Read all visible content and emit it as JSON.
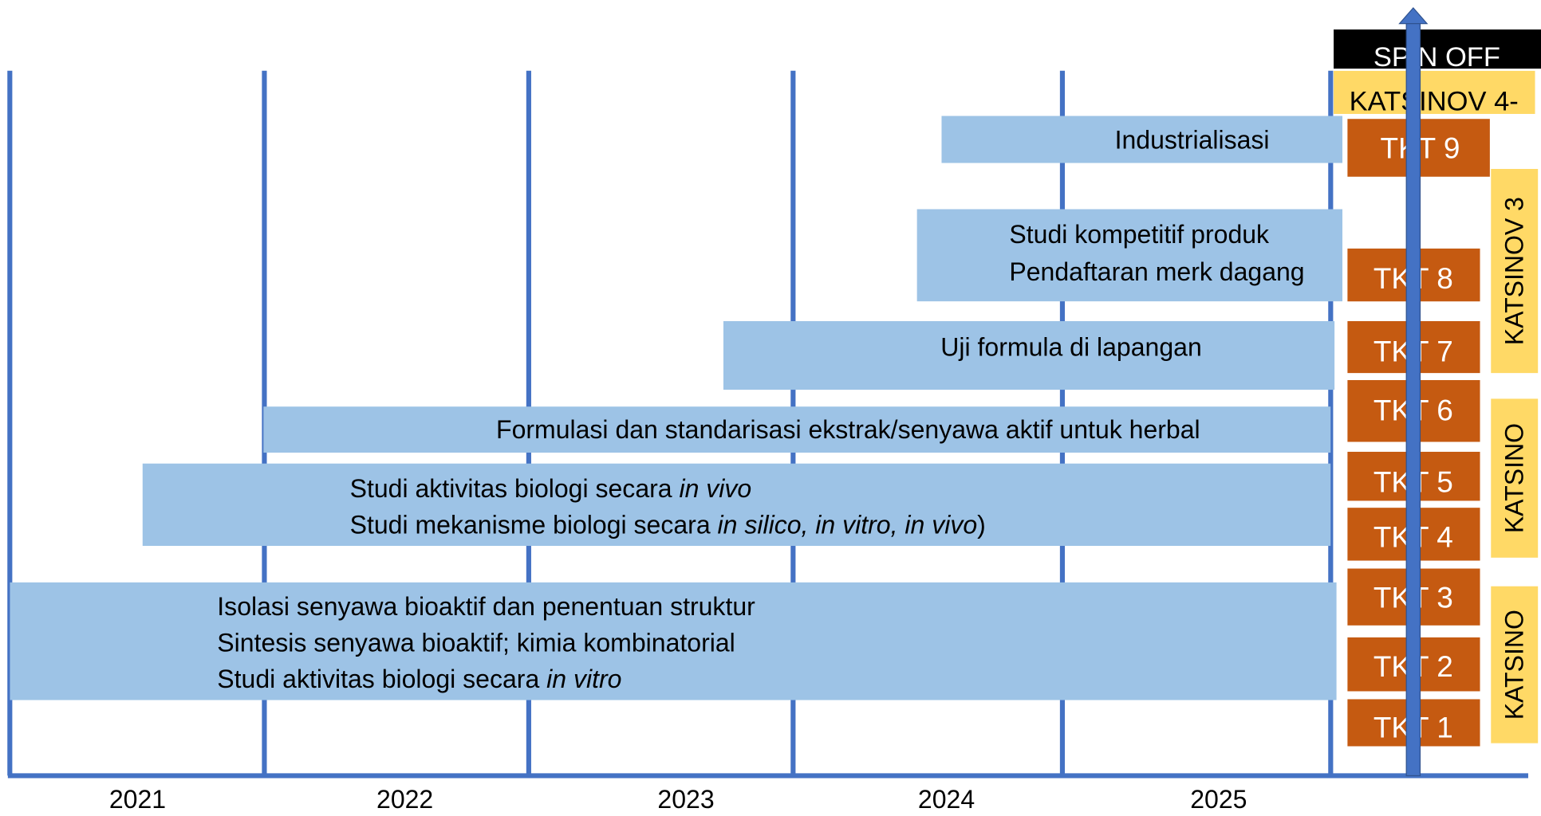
{
  "years": [
    "2021",
    "2022",
    "2023",
    "2024",
    "2025"
  ],
  "activities": [
    {
      "lines": [
        [
          {
            "text": "Industrialisasi",
            "italic": false
          }
        ]
      ]
    },
    {
      "lines": [
        [
          {
            "text": "Studi kompetitif produk",
            "italic": false
          }
        ],
        [
          {
            "text": "Pendaftaran merk dagang",
            "italic": false
          }
        ]
      ]
    },
    {
      "lines": [
        [
          {
            "text": "Uji formula di lapangan",
            "italic": false
          }
        ]
      ]
    },
    {
      "lines": [
        [
          {
            "text": "Formulasi dan standarisasi ekstrak/senyawa aktif untuk herbal",
            "italic": false
          }
        ]
      ]
    },
    {
      "lines": [
        [
          {
            "text": "Studi aktivitas biologi secara ",
            "italic": false
          },
          {
            "text": "in vivo",
            "italic": true
          }
        ],
        [
          {
            "text": "Studi mekanisme biologi secara ",
            "italic": false
          },
          {
            "text": "in silico, in vitro, in vivo",
            "italic": true
          },
          {
            "text": ")",
            "italic": false
          }
        ]
      ]
    },
    {
      "lines": [
        [
          {
            "text": "Isolasi senyawa bioaktif dan penentuan struktur",
            "italic": false
          }
        ],
        [
          {
            "text": "Sintesis senyawa bioaktif; kimia kombinatorial",
            "italic": false
          }
        ],
        [
          {
            "text": "Studi aktivitas biologi secara ",
            "italic": false
          },
          {
            "text": "in vitro",
            "italic": true
          }
        ]
      ]
    }
  ],
  "spin_off": "SPIN OFF",
  "katsinov_top": "KATSINOV 4-",
  "tkt": [
    "TKT 9",
    "TKT 8",
    "TKT 7",
    "TKT 6",
    "TKT 5",
    "TKT 4",
    "TKT 3",
    "TKT 2",
    "TKT 1"
  ],
  "katsinov_side": [
    "KATSINOV 3",
    "KATSINO",
    "KATSINO"
  ]
}
